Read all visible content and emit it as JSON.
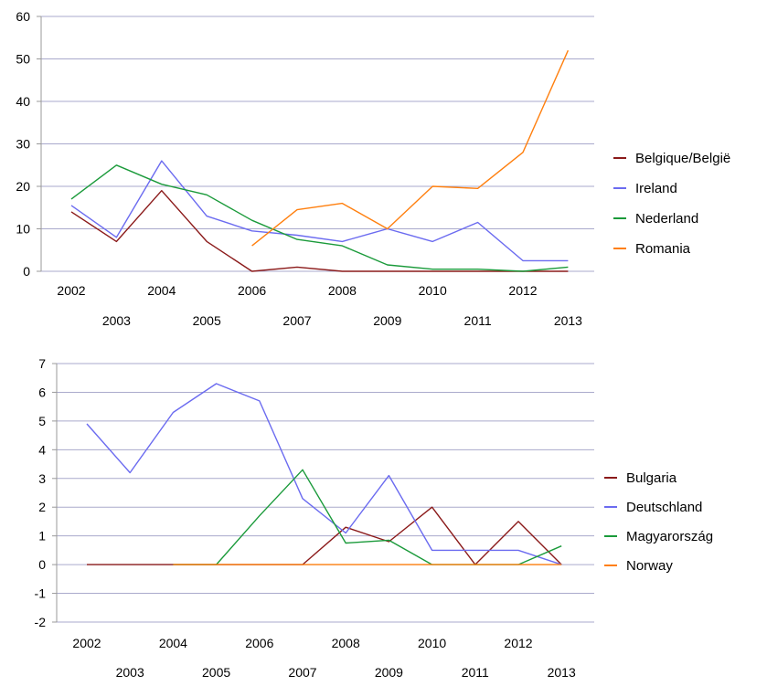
{
  "chart_data": [
    {
      "type": "line",
      "x": [
        "2002",
        "2003",
        "2004",
        "2005",
        "2006",
        "2007",
        "2008",
        "2009",
        "2010",
        "2011",
        "2012",
        "2013"
      ],
      "y_ticks": [
        "0",
        "10",
        "20",
        "30",
        "40",
        "50",
        "60"
      ],
      "ylim": [
        0,
        60
      ],
      "grid": true,
      "legend_position": "right",
      "series": [
        {
          "name": "Belgique/België",
          "color": "#8b1a1a",
          "values": [
            14,
            7,
            19,
            7,
            0,
            1,
            0,
            0,
            0,
            0,
            0,
            0
          ]
        },
        {
          "name": "Ireland",
          "color": "#6b6bf0",
          "values": [
            15.5,
            8,
            26,
            13,
            9.5,
            8.5,
            7,
            10,
            7,
            11.5,
            2.5,
            2.5
          ]
        },
        {
          "name": "Nederland",
          "color": "#1a9a3a",
          "values": [
            17,
            25,
            20.5,
            18,
            12,
            7.5,
            6,
            1.5,
            0.5,
            0.5,
            0,
            1
          ]
        },
        {
          "name": "Romania",
          "color": "#ff7f0e",
          "values": [
            null,
            null,
            null,
            null,
            6,
            14.5,
            16,
            10,
            20,
            19.5,
            28,
            52
          ]
        }
      ]
    },
    {
      "type": "line",
      "x": [
        "2002",
        "2003",
        "2004",
        "2005",
        "2006",
        "2007",
        "2008",
        "2009",
        "2010",
        "2011",
        "2012",
        "2013"
      ],
      "y_ticks": [
        "-2",
        "-1",
        "0",
        "1",
        "2",
        "3",
        "4",
        "5",
        "6",
        "7"
      ],
      "ylim": [
        -2,
        7
      ],
      "grid": true,
      "legend_position": "right",
      "series": [
        {
          "name": "Bulgaria",
          "color": "#8b1a1a",
          "values": [
            0,
            0,
            0,
            0,
            0,
            0,
            1.3,
            0.8,
            2,
            0,
            1.5,
            0
          ]
        },
        {
          "name": "Deutschland",
          "color": "#6b6bf0",
          "values": [
            4.9,
            3.2,
            5.3,
            6.3,
            5.7,
            2.3,
            1.1,
            3.1,
            0.5,
            0.5,
            0.5,
            0
          ]
        },
        {
          "name": "Magyarország",
          "color": "#1a9a3a",
          "values": [
            null,
            null,
            0,
            0,
            1.7,
            3.3,
            0.75,
            0.85,
            0,
            0,
            0,
            0.65
          ]
        },
        {
          "name": "Norway",
          "color": "#ff7f0e",
          "values": [
            null,
            null,
            0,
            0,
            0,
            0,
            0,
            0,
            0,
            0,
            0,
            0
          ]
        }
      ]
    }
  ]
}
